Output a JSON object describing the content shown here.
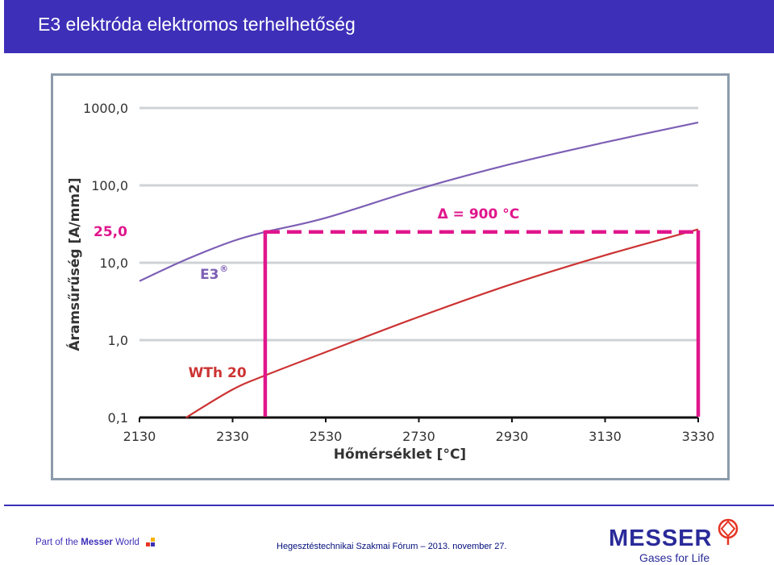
{
  "header": {
    "title": "E3 elektróda elektromos terhelhetőség"
  },
  "chart_data": {
    "type": "line",
    "title": "",
    "xlabel": "Hőmérséklet [°C]",
    "ylabel": "Áramsűrűség [A/mm2]",
    "x_ticks": [
      "2130",
      "2330",
      "2530",
      "2730",
      "2930",
      "3130",
      "3330"
    ],
    "y_ticks": [
      "0,1",
      "1,0",
      "10,0",
      "100,0",
      "1000,0"
    ],
    "y_scale": "log",
    "xlim": [
      2130,
      3330
    ],
    "ylim": [
      0.1,
      1000
    ],
    "grid": "horizontal",
    "series": [
      {
        "name": "E3®",
        "color": "#7d5fb5",
        "x": [
          2130,
          2230,
          2330,
          2400,
          2530,
          2730,
          2930,
          3130,
          3330
        ],
        "y": [
          5.8,
          11,
          19,
          25,
          38,
          90,
          190,
          360,
          650
        ]
      },
      {
        "name": "WTh 20",
        "color": "#cc3333",
        "x": [
          2230,
          2330,
          2400,
          2530,
          2730,
          2930,
          3130,
          3330
        ],
        "y": [
          0.1,
          0.23,
          0.35,
          0.7,
          2.0,
          5.3,
          12.5,
          27
        ]
      }
    ],
    "annotations": {
      "level_label": "25,0",
      "level_value": 25,
      "delta_label": "Δ = 900 °C",
      "delta_x_start": 2400,
      "delta_x_end": 3330,
      "marker_color": "#e0168c"
    }
  },
  "footer": {
    "left_prefix": "Part of the ",
    "left_bold": "Messer",
    "left_suffix": " World",
    "center": "Hegesztéstechnikai Szakmai Fórum – 2013. november 27.",
    "logo_word": "MESSER",
    "logo_sub": "Gases for Life"
  }
}
